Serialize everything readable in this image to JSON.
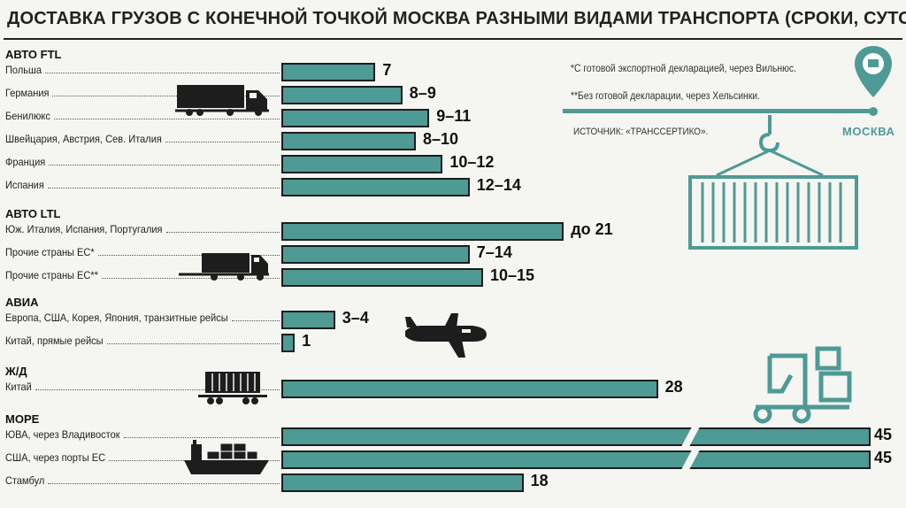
{
  "title": "ДОСТАВКА ГРУЗОВ С КОНЕЧНОЙ ТОЧКОЙ МОСКВА РАЗНЫМИ ВИДАМИ ТРАНСПОРТА (СРОКИ, СУТОК)",
  "notes": {
    "note1": "*С готовой экспортной декларацией, через Вильнюс.",
    "note2": "**Без готовой декларации, через Хельсинки.",
    "source": "ИСТОЧНИК: «ТРАНССЕРТИКО».",
    "city": "МОСКВА"
  },
  "colors": {
    "bar": "#4e9a95",
    "outline": "#1d1d1d",
    "accent": "#4e9a95"
  },
  "icons": [
    "truck-icon",
    "truck-small-icon",
    "airplane-icon",
    "railcar-icon",
    "ship-icon",
    "container-crane-icon",
    "forklift-icon",
    "location-pin-icon"
  ],
  "chart_data": {
    "type": "bar",
    "orientation": "horizontal",
    "unit": "суток",
    "groups": [
      {
        "name": "АВТО FTL",
        "rows": [
          {
            "label": "Польша",
            "value": 7,
            "min": 7,
            "max": 7,
            "text": "7"
          },
          {
            "label": "Германия",
            "value": 9,
            "min": 8,
            "max": 9,
            "text": "8–9"
          },
          {
            "label": "Бенилюкс",
            "value": 11,
            "min": 9,
            "max": 11,
            "text": "9–11"
          },
          {
            "label": "Швейцария, Австрия, Сев. Италия",
            "value": 10,
            "min": 8,
            "max": 10,
            "text": "8–10"
          },
          {
            "label": "Франция",
            "value": 12,
            "min": 10,
            "max": 12,
            "text": "10–12"
          },
          {
            "label": "Испания",
            "value": 14,
            "min": 12,
            "max": 14,
            "text": "12–14"
          }
        ]
      },
      {
        "name": "АВТО LTL",
        "rows": [
          {
            "label": "Юж. Италия, Испания, Португалия",
            "value": 21,
            "max": 21,
            "text": "до 21"
          },
          {
            "label": "Прочие страны ЕС*",
            "value": 14,
            "min": 7,
            "max": 14,
            "text": "7–14"
          },
          {
            "label": "Прочие страны ЕС**",
            "value": 15,
            "min": 10,
            "max": 15,
            "text": "10–15"
          }
        ]
      },
      {
        "name": "АВИА",
        "rows": [
          {
            "label": "Европа, США, Корея, Япония, транзитные рейсы",
            "value": 4,
            "min": 3,
            "max": 4,
            "text": "3–4"
          },
          {
            "label": "Китай, прямые рейсы",
            "value": 1,
            "min": 1,
            "max": 1,
            "text": "1"
          }
        ]
      },
      {
        "name": "Ж/Д",
        "rows": [
          {
            "label": "Китай",
            "value": 28,
            "min": 28,
            "max": 28,
            "text": "28"
          }
        ]
      },
      {
        "name": "МОРЕ",
        "rows": [
          {
            "label": "ЮВА, через Владивосток",
            "value": 45,
            "min": 45,
            "max": 45,
            "text": "45",
            "broken": true
          },
          {
            "label": "США, через порты ЕС",
            "value": 45,
            "min": 45,
            "max": 45,
            "text": "45",
            "broken": true
          },
          {
            "label": "Стамбул",
            "value": 18,
            "min": 18,
            "max": 18,
            "text": "18"
          }
        ]
      }
    ]
  }
}
